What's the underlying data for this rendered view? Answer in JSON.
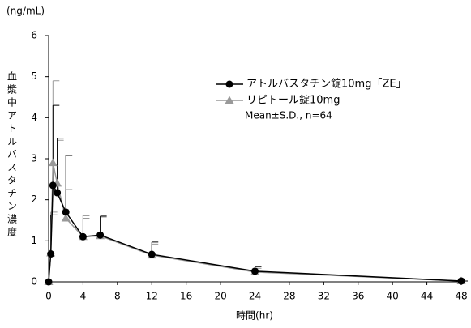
{
  "chart_data": {
    "type": "line",
    "y_unit": "(ng/mL)",
    "y_label": "血漿中アトルバスタチン濃度",
    "x_label": "時間(hr)",
    "annotation": "Mean±S.D., n=64",
    "x": [
      0,
      0.25,
      0.5,
      1,
      2,
      4,
      6,
      12,
      24,
      48
    ],
    "series": [
      {
        "name": "アトルバスタチン錠10mg「ZE」",
        "color": "#000000",
        "marker": "circle",
        "values": [
          0,
          0.68,
          2.35,
          2.17,
          1.7,
          1.1,
          1.14,
          0.67,
          0.26,
          0.02
        ],
        "errors": [
          0,
          0.95,
          1.95,
          1.33,
          1.38,
          0.52,
          0.46,
          0.3,
          0.11,
          0
        ]
      },
      {
        "name": "リピトール錠10mg",
        "color": "#999999",
        "marker": "triangle",
        "values": [
          0,
          0.7,
          2.9,
          2.4,
          1.55,
          1.1,
          1.12,
          0.65,
          0.24,
          0.02
        ],
        "errors": [
          0,
          1.0,
          2.0,
          1.05,
          0.7,
          0.45,
          0.46,
          0.27,
          0.09,
          0
        ]
      }
    ],
    "xlim": [
      0,
      48
    ],
    "xticks": [
      0,
      4,
      8,
      12,
      16,
      20,
      24,
      28,
      32,
      36,
      40,
      44,
      48
    ],
    "ylim": [
      0,
      6
    ],
    "yticks": [
      0,
      1,
      2,
      3,
      4,
      5,
      6
    ],
    "grid": false
  }
}
